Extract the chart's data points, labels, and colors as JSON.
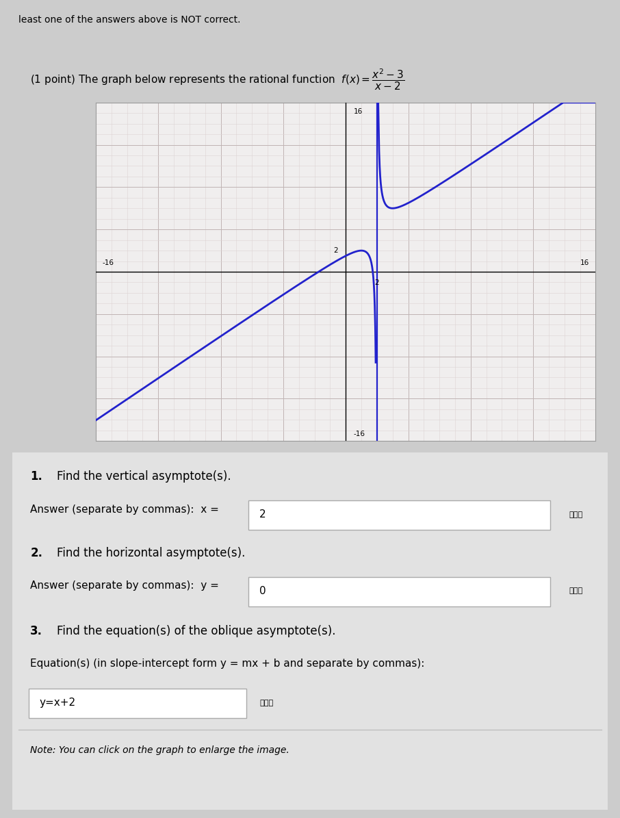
{
  "page_bg": "#cccccc",
  "header_text": "least one of the answers above is NOT correct.",
  "problem_text": "(1 point) The graph below represents the rational function",
  "function_latex": "$f(x) = \\dfrac{x^2 - 3}{x - 2}$",
  "graph_xlim": [
    -16,
    16
  ],
  "graph_ylim": [
    -16,
    16
  ],
  "vertical_asymptote": 2,
  "curve_color": "#2222cc",
  "asymptote_color": "#2222cc",
  "grid_major_color": "#c0b4b4",
  "grid_minor_color": "#ddd4d4",
  "graph_bg": "#f0eeee",
  "q1_answer": "2",
  "q2_answer": "0",
  "q3_answer": "y=x+2",
  "note_text": "Note: You can click on the graph to enlarge the image."
}
